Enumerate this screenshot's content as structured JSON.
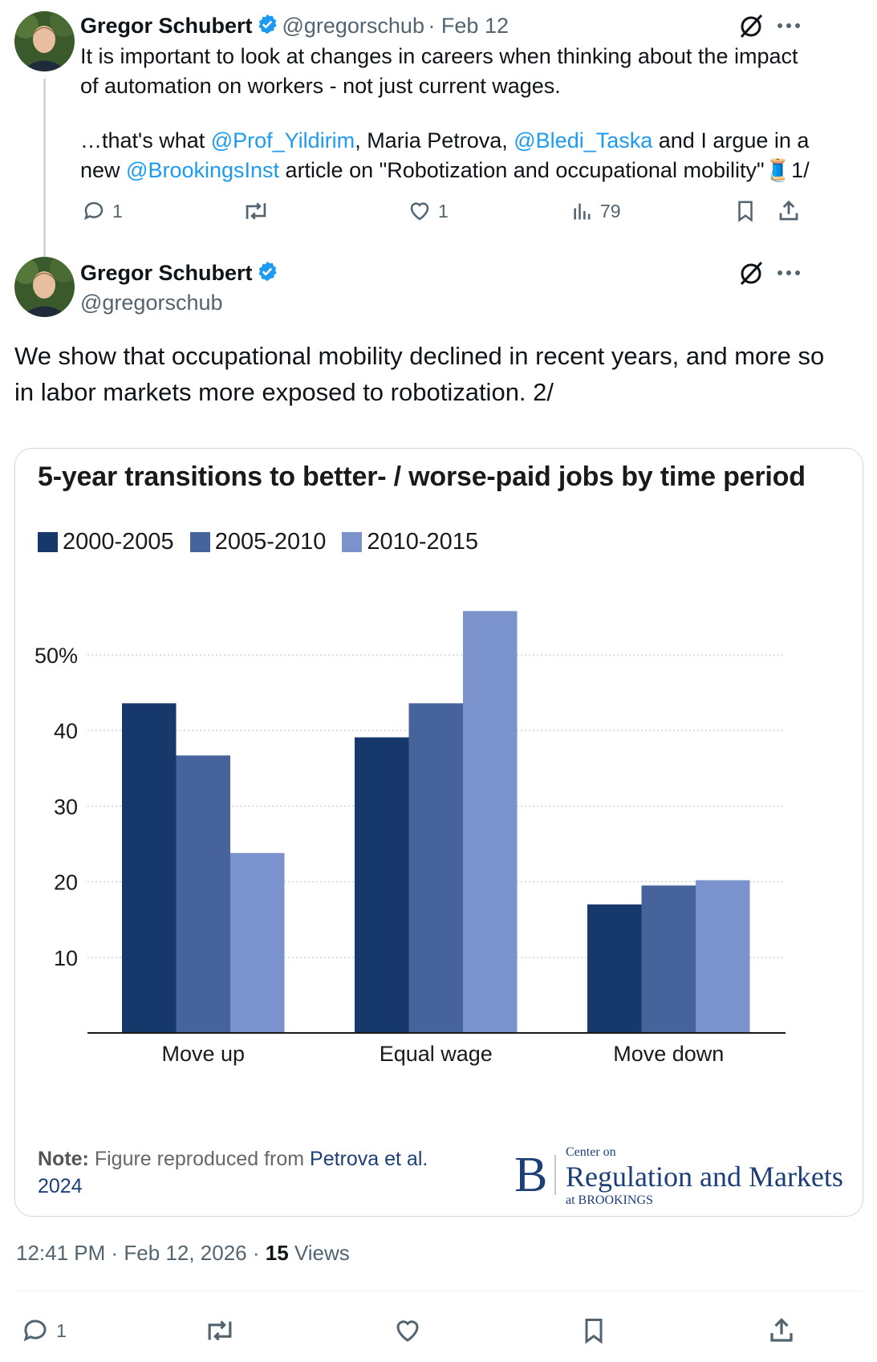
{
  "tweet1": {
    "author_name": "Gregor Schubert",
    "handle": "@gregorschub",
    "date": "· Feb 12",
    "text_line1": "It is important to look at changes in careers when thinking about the impact",
    "text_line2": "of automation on workers - not just current wages.",
    "p2_a": "…that's what ",
    "mention1": "@Prof_Yildirim",
    "p2_b": ", Maria Petrova, ",
    "mention2": "@Bledi_Taska",
    "p2_c": " and I argue in a",
    "p3_a": "new ",
    "mention3": "@BrookingsInst",
    "p3_b": " article on \"Robotization and occupational mobility\"🧵1/",
    "replies": "1",
    "likes": "1",
    "views": "79"
  },
  "tweet2": {
    "author_name": "Gregor Schubert",
    "handle": "@gregorschub",
    "text_line1": "We show that occupational mobility declined in recent years, and more so",
    "text_line2": "in labor markets more exposed to robotization. 2/",
    "time": "12:41 PM · Feb 12, 2026 · ",
    "views_count": "15",
    "views_label": " Views",
    "replies": "1"
  },
  "card": {
    "note_label": "Note:",
    "note_text": " Figure reproduced from ",
    "note_link": "Petrova et al.",
    "note_year": "2024",
    "logo_letter": "B",
    "logo_small_top": "Center on",
    "logo_big": "Regulation and Markets",
    "logo_small_bottom": "at BROOKINGS"
  },
  "colors": {
    "accent": "#1d9bf0",
    "series": [
      "#17386b",
      "#47639c",
      "#7b93cc"
    ]
  },
  "chart_data": {
    "type": "bar",
    "title": "5-year transitions to better- / worse-paid jobs by time period",
    "categories": [
      "Move up",
      "Equal wage",
      "Move down"
    ],
    "series": [
      {
        "name": "2000-2005",
        "values": [
          43.6,
          39.1,
          17.0
        ]
      },
      {
        "name": "2005-2010",
        "values": [
          36.7,
          43.6,
          19.5
        ]
      },
      {
        "name": "2010-2015",
        "values": [
          23.8,
          55.8,
          20.2
        ]
      }
    ],
    "yticks": [
      {
        "value": 10,
        "label": "10"
      },
      {
        "value": 20,
        "label": "20"
      },
      {
        "value": 30,
        "label": "30"
      },
      {
        "value": 40,
        "label": "40"
      },
      {
        "value": 50,
        "label": "50%"
      }
    ],
    "ylim": [
      0,
      60
    ],
    "grid": true,
    "legend_position": "top-left"
  }
}
